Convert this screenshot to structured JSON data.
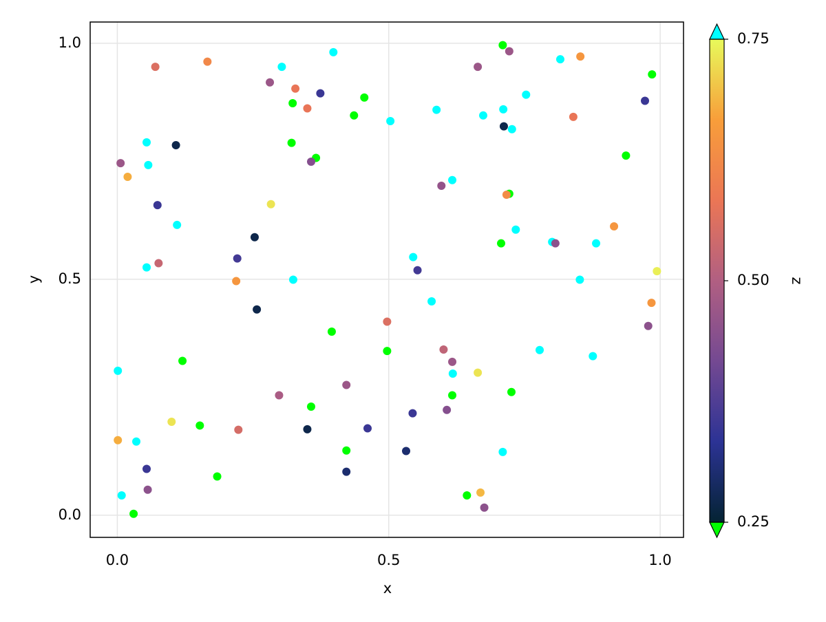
{
  "chart_data": {
    "type": "scatter",
    "xlabel": "x",
    "ylabel": "y",
    "colorbar_label": "z",
    "xlim": [
      -0.05,
      1.043
    ],
    "ylim": [
      -0.047,
      1.045
    ],
    "xticks": [
      {
        "value": 0,
        "label": "0.0"
      },
      0.5,
      {
        "value": 1,
        "label": "1.0"
      }
    ],
    "yticks": [
      {
        "value": 0,
        "label": "0.0"
      },
      0.5,
      {
        "value": 1,
        "label": "1.0"
      }
    ],
    "clim": [
      0.25,
      0.75
    ],
    "cticks": [
      0.25,
      {
        "value": 0.5,
        "label": "0.50"
      },
      0.75
    ],
    "colormap": [
      "#042333",
      "#2c3395",
      "#744992",
      "#b15f82",
      "#eb7655",
      "#f89e3a",
      "#e8fa5b"
    ],
    "lowclip": "#00ff00",
    "highclip": "#00ffff",
    "grid": true,
    "x": [
      0.71,
      0.722,
      0.853,
      0.816,
      0.398,
      0.166,
      0.07,
      0.303,
      0.664,
      0.985,
      0.281,
      0.328,
      0.753,
      0.374,
      0.455,
      0.972,
      0.323,
      0.35,
      0.588,
      0.711,
      0.436,
      0.674,
      0.84,
      0.503,
      0.712,
      0.727,
      0.054,
      0.108,
      0.321,
      0.937,
      0.366,
      0.357,
      0.006,
      0.057,
      0.019,
      0.617,
      0.597,
      0.283,
      0.074,
      0.722,
      0.717,
      0.11,
      0.915,
      0.734,
      0.253,
      0.707,
      0.801,
      0.807,
      0.882,
      0.221,
      0.545,
      0.076,
      0.054,
      0.553,
      0.994,
      0.219,
      0.324,
      0.852,
      0.579,
      0.984,
      0.257,
      0.497,
      0.978,
      0.395,
      0.497,
      0.601,
      0.778,
      0.876,
      0.12,
      0.617,
      0.001,
      0.618,
      0.664,
      0.422,
      0.298,
      0.617,
      0.726,
      0.357,
      0.607,
      0.544,
      0.1,
      0.152,
      0.223,
      0.35,
      0.461,
      0.001,
      0.035,
      0.422,
      0.532,
      0.71,
      0.054,
      0.422,
      0.184,
      0.056,
      0.008,
      0.644,
      0.669,
      0.676,
      0.03
    ],
    "y": [
      0.996,
      0.983,
      0.972,
      0.966,
      0.981,
      0.961,
      0.95,
      0.95,
      0.95,
      0.934,
      0.917,
      0.904,
      0.891,
      0.894,
      0.885,
      0.878,
      0.873,
      0.862,
      0.859,
      0.86,
      0.847,
      0.847,
      0.844,
      0.835,
      0.824,
      0.818,
      0.79,
      0.784,
      0.789,
      0.762,
      0.757,
      0.749,
      0.746,
      0.742,
      0.717,
      0.71,
      0.698,
      0.659,
      0.657,
      0.681,
      0.679,
      0.615,
      0.612,
      0.605,
      0.589,
      0.576,
      0.579,
      0.576,
      0.576,
      0.544,
      0.547,
      0.534,
      0.525,
      0.519,
      0.517,
      0.496,
      0.499,
      0.499,
      0.453,
      0.45,
      0.436,
      0.41,
      0.401,
      0.389,
      0.348,
      0.351,
      0.35,
      0.337,
      0.327,
      0.325,
      0.306,
      0.3,
      0.302,
      0.276,
      0.254,
      0.254,
      0.261,
      0.23,
      0.223,
      0.216,
      0.198,
      0.19,
      0.181,
      0.182,
      0.184,
      0.159,
      0.156,
      0.137,
      0.136,
      0.134,
      0.098,
      0.092,
      0.082,
      0.054,
      0.042,
      0.042,
      0.048,
      0.016,
      0.003
    ],
    "z": [
      0.2,
      0.47,
      0.65,
      0.8,
      0.8,
      0.62,
      0.56,
      0.8,
      0.47,
      0.2,
      0.47,
      0.58,
      0.8,
      0.35,
      0.2,
      0.35,
      0.2,
      0.58,
      0.8,
      0.8,
      0.2,
      0.8,
      0.58,
      0.8,
      0.27,
      0.8,
      0.8,
      0.27,
      0.2,
      0.2,
      0.2,
      0.44,
      0.47,
      0.8,
      0.68,
      0.8,
      0.46,
      0.73,
      0.35,
      0.2,
      0.63,
      0.8,
      0.65,
      0.8,
      0.27,
      0.2,
      0.8,
      0.45,
      0.8,
      0.36,
      0.8,
      0.53,
      0.8,
      0.36,
      0.74,
      0.65,
      0.8,
      0.8,
      0.8,
      0.65,
      0.27,
      0.56,
      0.45,
      0.2,
      0.2,
      0.52,
      0.8,
      0.8,
      0.2,
      0.47,
      0.8,
      0.8,
      0.73,
      0.47,
      0.49,
      0.2,
      0.2,
      0.2,
      0.44,
      0.35,
      0.73,
      0.2,
      0.55,
      0.27,
      0.35,
      0.68,
      0.8,
      0.2,
      0.3,
      0.8,
      0.35,
      0.3,
      0.2,
      0.45,
      0.8,
      0.2,
      0.69,
      0.45,
      0.2
    ]
  }
}
